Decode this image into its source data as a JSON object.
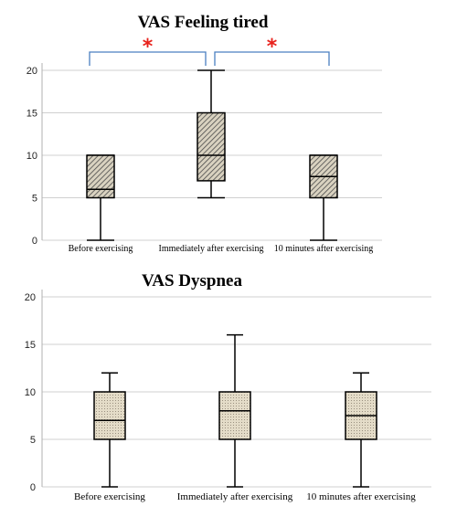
{
  "chart_data": [
    {
      "type": "box",
      "title": "VAS Feeling tired",
      "categories": [
        "Before exercising",
        "Immediately after exercising",
        "10 minutes after exercising"
      ],
      "ylim": [
        0,
        20
      ],
      "yticks": [
        0,
        5,
        10,
        15,
        20
      ],
      "grid": true,
      "boxes": [
        {
          "min": 0,
          "q1": 5,
          "median": 6,
          "q3": 10,
          "max": 10
        },
        {
          "min": 5,
          "q1": 7,
          "median": 10,
          "q3": 15,
          "max": 20
        },
        {
          "min": 0,
          "q1": 5,
          "median": 7.5,
          "q3": 10,
          "max": 10
        }
      ],
      "significance": [
        {
          "from": 0,
          "to": 1,
          "label": "*"
        },
        {
          "from": 1,
          "to": 2,
          "label": "*"
        }
      ],
      "colors": {
        "bracket": "#4a7fc1",
        "star": "#e8211b",
        "box_fill": "#d9d2c0",
        "grid": "#d0d0d0"
      }
    },
    {
      "type": "box",
      "title": "VAS Dyspnea",
      "categories": [
        "Before exercising",
        "Immediately after exercising",
        "10 minutes after exercising"
      ],
      "ylim": [
        0,
        20
      ],
      "yticks": [
        0,
        5,
        10,
        15,
        20
      ],
      "grid": true,
      "boxes": [
        {
          "min": 0,
          "q1": 5,
          "median": 7,
          "q3": 10,
          "max": 12
        },
        {
          "min": 0,
          "q1": 5,
          "median": 8,
          "q3": 10,
          "max": 16
        },
        {
          "min": 0,
          "q1": 5,
          "median": 7.5,
          "q3": 10,
          "max": 12
        }
      ],
      "colors": {
        "box_fill": "#e4dcc8",
        "grid": "#d0d0d0"
      }
    }
  ]
}
